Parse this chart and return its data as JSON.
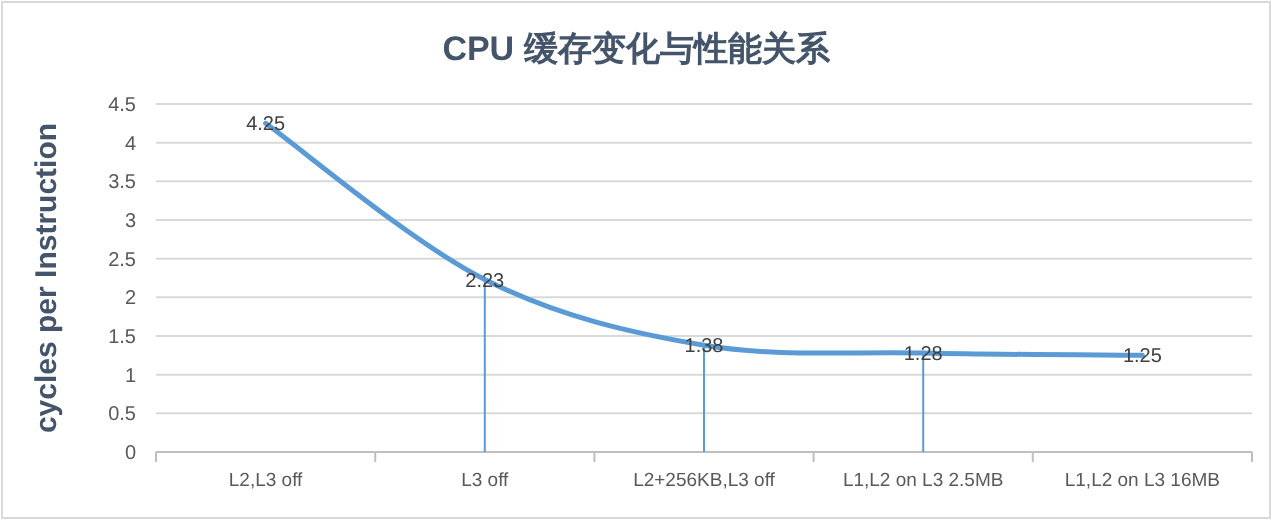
{
  "chart_data": {
    "type": "line",
    "title": "CPU 缓存变化与性能关系",
    "ylabel": "cycles per Instruction",
    "categories": [
      "L2,L3 off",
      "L3 off",
      "L2+256KB,L3 off",
      "L1,L2 on L3 2.5MB",
      "L1,L2 on L3 16MB"
    ],
    "series": [
      {
        "color": "#5b9bd5",
        "values": [
          4.25,
          2.23,
          1.38,
          1.28,
          1.25
        ],
        "errors": [
          null,
          [
            0,
            2.23
          ],
          [
            0,
            1.38
          ],
          [
            0,
            1.28
          ],
          null
        ]
      }
    ],
    "ylim": [
      0,
      4.5
    ],
    "yticks": [
      0,
      0.5,
      1,
      1.5,
      2,
      2.5,
      3,
      3.5,
      4,
      4.5
    ],
    "grid": "y",
    "data_labels": true,
    "marker": "none",
    "line_style": "solid"
  }
}
